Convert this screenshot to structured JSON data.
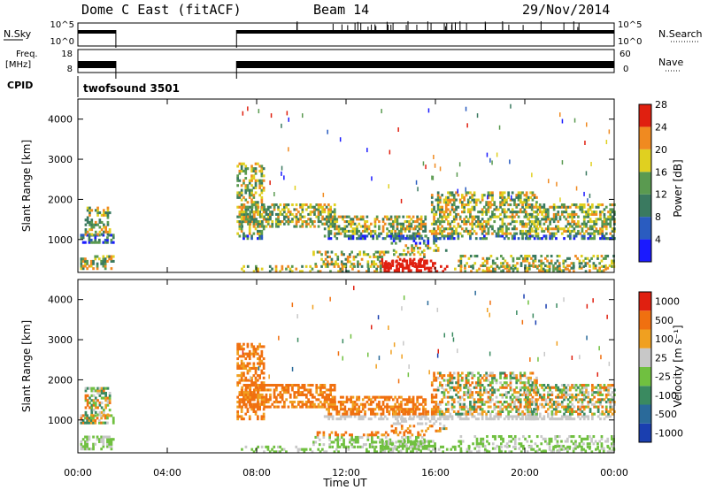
{
  "header": {
    "title": "Dome C East (fitACF)",
    "beam": "Beam 14",
    "date": "29/Nov/2014"
  },
  "strip_labels": {
    "nsky": "N.Sky",
    "nsky_hi": "10^5",
    "nsky_lo": "10^0",
    "nsearch": "N.Search",
    "nsearch_hi": "10^5",
    "nsearch_lo": "10^0",
    "freq": "Freq.",
    "freq_unit": "[MHz]",
    "freq_hi": "18",
    "freq_lo": "8",
    "nave": "Nave",
    "nave_hi": "60",
    "nave_lo": "0",
    "cpid": "CPID",
    "cpid_value": "twofsound 3501"
  },
  "chart_data": [
    {
      "type": "heatmap",
      "name": "power",
      "ylabel": "Slant Range [km]",
      "xlabel": "Time UT",
      "xlim": [
        "00:00",
        "24:00"
      ],
      "ylim": [
        180,
        4500
      ],
      "yticks": [
        1000,
        2000,
        3000,
        4000
      ],
      "xticks": [
        "00:00",
        "04:00",
        "08:00",
        "12:00",
        "16:00",
        "20:00",
        "00:00"
      ],
      "colorbar": {
        "label": "Power [dB]",
        "ticks": [
          "4",
          "8",
          "12",
          "16",
          "20",
          "24",
          "28"
        ],
        "colors": [
          "#1a1aff",
          "#2a5cc0",
          "#3a7a60",
          "#5a9a50",
          "#e0d020",
          "#f08a20",
          "#e02010"
        ]
      },
      "data_gaps_ut": [
        [
          1.7,
          7.1
        ]
      ]
    },
    {
      "type": "heatmap",
      "name": "velocity",
      "ylabel": "Slant Range [km]",
      "xlabel": "Time UT",
      "xlim": [
        "00:00",
        "24:00"
      ],
      "ylim": [
        180,
        4500
      ],
      "yticks": [
        1000,
        2000,
        3000,
        4000
      ],
      "xticks": [
        "00:00",
        "04:00",
        "08:00",
        "12:00",
        "16:00",
        "20:00",
        "00:00"
      ],
      "colorbar": {
        "label": "Velocity [m s⁻¹]",
        "ticks": [
          "1000",
          "500",
          "100",
          "25",
          "-25",
          "-100",
          "-500",
          "-1000"
        ],
        "colors": [
          "#1a3fb0",
          "#2a6a9a",
          "#3a8a60",
          "#70c040",
          "#c8c8c8",
          "#f0a020",
          "#f07010",
          "#e02010"
        ]
      },
      "data_gaps_ut": [
        [
          1.7,
          7.1
        ]
      ]
    }
  ],
  "axis": {
    "time_label": "Time UT",
    "range_label": "Slant Range [km]"
  }
}
